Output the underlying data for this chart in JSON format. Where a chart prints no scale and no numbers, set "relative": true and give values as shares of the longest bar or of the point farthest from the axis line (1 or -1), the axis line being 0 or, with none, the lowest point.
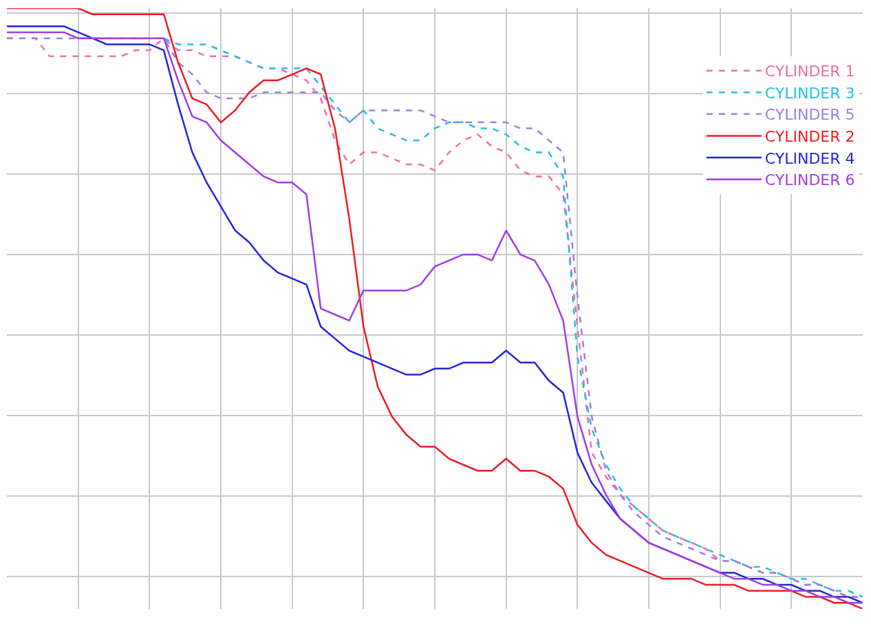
{
  "chart_data": {
    "type": "line",
    "relative": true,
    "grid": true,
    "legend": "top right",
    "marker": "none",
    "categories": [
      null,
      null,
      null,
      null,
      null,
      null,
      null,
      null,
      null,
      null,
      null,
      null,
      null,
      null,
      null,
      null,
      null,
      null,
      null,
      null,
      null,
      null,
      null,
      null,
      null,
      null,
      null,
      null,
      null,
      null,
      null,
      null,
      null,
      null,
      null,
      null,
      null,
      null,
      null,
      null,
      null,
      null,
      null,
      null,
      null,
      null,
      null,
      null,
      null,
      null,
      null,
      null,
      null,
      null,
      null,
      null,
      null,
      null,
      null,
      null,
      null
    ],
    "series": [
      {
        "name": "CYLINDER 1",
        "color": "#f06ca8",
        "line_style": "dashed",
        "values": [
          0.95,
          0.95,
          0.95,
          0.92,
          0.92,
          0.92,
          0.92,
          0.92,
          0.92,
          0.93,
          0.93,
          0.95,
          0.93,
          0.93,
          0.92,
          0.92,
          0.92,
          0.91,
          0.9,
          0.9,
          0.89,
          0.88,
          0.85,
          0.78,
          0.74,
          0.76,
          0.76,
          0.75,
          0.74,
          0.74,
          0.73,
          0.76,
          0.78,
          0.79,
          0.77,
          0.76,
          0.73,
          0.72,
          0.72,
          0.69,
          0.47,
          0.26,
          0.22,
          0.19,
          0.17,
          0.15,
          0.13,
          0.12,
          0.11,
          0.1,
          0.08,
          0.08,
          0.07,
          0.06,
          0.06,
          0.05,
          0.04,
          0.04,
          0.03,
          0.02,
          0.02
        ]
      },
      {
        "name": "CYLINDER 3",
        "color": "#22bfe6",
        "line_style": "dashed",
        "values": [
          null,
          null,
          null,
          null,
          null,
          null,
          null,
          null,
          null,
          null,
          null,
          0.95,
          0.94,
          0.94,
          0.94,
          0.93,
          0.92,
          0.91,
          0.9,
          0.9,
          0.9,
          0.9,
          0.87,
          0.84,
          0.81,
          0.83,
          0.8,
          0.79,
          0.78,
          0.78,
          0.8,
          0.81,
          0.81,
          0.8,
          0.8,
          0.79,
          0.77,
          0.76,
          0.76,
          0.72,
          0.42,
          0.3,
          0.24,
          0.2,
          0.17,
          0.15,
          0.13,
          0.12,
          0.11,
          0.1,
          0.09,
          0.08,
          0.07,
          0.07,
          0.06,
          0.05,
          0.05,
          0.04,
          0.03,
          0.03,
          0.02
        ]
      },
      {
        "name": "CYLINDER 5",
        "color": "#9b7fe0",
        "line_style": "dashed",
        "values": [
          0.95,
          0.95,
          0.95,
          0.95,
          0.95,
          0.95,
          0.95,
          0.95,
          0.95,
          0.95,
          0.95,
          0.95,
          0.91,
          0.89,
          0.86,
          0.85,
          0.85,
          0.85,
          0.86,
          0.86,
          0.86,
          0.86,
          0.86,
          0.83,
          0.81,
          0.83,
          0.83,
          0.83,
          0.83,
          0.83,
          0.82,
          0.81,
          0.81,
          0.81,
          0.81,
          0.81,
          0.8,
          0.8,
          0.78,
          0.76,
          0.52,
          0.32,
          0.23,
          0.19,
          0.16,
          0.14,
          0.12,
          0.11,
          0.1,
          0.09,
          0.08,
          0.08,
          0.07,
          0.06,
          0.06,
          0.05,
          0.04,
          0.04,
          0.03,
          0.02,
          0.02
        ]
      },
      {
        "name": "CYLINDER 2",
        "color": "#ee1c24",
        "line_style": "solid",
        "values": [
          1.0,
          1.0,
          1.0,
          1.0,
          1.0,
          1.0,
          0.99,
          0.99,
          0.99,
          0.99,
          0.99,
          0.99,
          0.91,
          0.85,
          0.84,
          0.81,
          0.83,
          0.86,
          0.88,
          0.88,
          0.89,
          0.9,
          0.89,
          0.8,
          0.65,
          0.47,
          0.37,
          0.32,
          0.29,
          0.27,
          0.27,
          0.25,
          0.24,
          0.23,
          0.23,
          0.25,
          0.23,
          0.23,
          0.22,
          0.2,
          0.14,
          0.11,
          0.09,
          0.08,
          0.07,
          0.06,
          0.05,
          0.05,
          0.05,
          0.04,
          0.04,
          0.04,
          0.03,
          0.03,
          0.03,
          0.03,
          0.02,
          0.02,
          0.01,
          0.01,
          0.0
        ]
      },
      {
        "name": "CYLINDER 4",
        "color": "#2323dc",
        "line_style": "solid",
        "values": [
          0.97,
          0.97,
          0.97,
          0.97,
          0.97,
          0.96,
          0.95,
          0.94,
          0.94,
          0.94,
          0.94,
          0.93,
          0.84,
          0.76,
          0.71,
          0.67,
          0.63,
          0.61,
          0.58,
          0.56,
          0.55,
          0.54,
          0.47,
          0.45,
          0.43,
          0.42,
          0.41,
          0.4,
          0.39,
          0.39,
          0.4,
          0.4,
          0.41,
          0.41,
          0.41,
          0.43,
          0.41,
          0.41,
          0.38,
          0.36,
          0.26,
          0.21,
          0.18,
          0.15,
          0.13,
          0.11,
          0.1,
          0.09,
          0.08,
          0.07,
          0.06,
          0.06,
          0.05,
          0.05,
          0.04,
          0.04,
          0.03,
          0.03,
          0.02,
          0.02,
          0.01
        ]
      },
      {
        "name": "CYLINDER 6",
        "color": "#a23ce6",
        "line_style": "solid",
        "values": [
          0.96,
          0.96,
          0.96,
          0.96,
          0.96,
          0.95,
          0.95,
          0.95,
          0.95,
          0.95,
          0.95,
          0.95,
          0.88,
          0.82,
          0.81,
          0.78,
          0.76,
          0.74,
          0.72,
          0.71,
          0.71,
          0.69,
          0.5,
          0.49,
          0.48,
          0.53,
          0.53,
          0.53,
          0.53,
          0.54,
          0.57,
          0.58,
          0.59,
          0.59,
          0.58,
          0.63,
          0.59,
          0.58,
          0.54,
          0.48,
          0.32,
          0.24,
          0.19,
          0.15,
          0.13,
          0.11,
          0.1,
          0.09,
          0.08,
          0.07,
          0.06,
          0.05,
          0.05,
          0.04,
          0.04,
          0.03,
          0.03,
          0.02,
          0.02,
          0.01,
          0.01
        ]
      }
    ]
  }
}
